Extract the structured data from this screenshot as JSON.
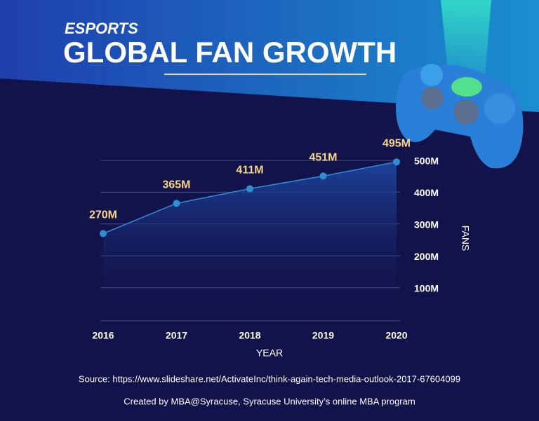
{
  "chart_data": {
    "type": "line",
    "subtitle": "ESPORTS",
    "title": "GLOBAL FAN GROWTH",
    "categories": [
      "2016",
      "2017",
      "2018",
      "2019",
      "2020"
    ],
    "values": [
      270,
      365,
      411,
      451,
      495
    ],
    "value_labels": [
      "270M",
      "365M",
      "411M",
      "451M",
      "495M"
    ],
    "color": "#2f8fd6",
    "ylim": [
      0,
      500
    ],
    "yticks": [
      {
        "value": 100,
        "label": "100M"
      },
      {
        "value": 200,
        "label": "200M"
      },
      {
        "value": 300,
        "label": "300M"
      },
      {
        "value": 400,
        "label": "400M"
      },
      {
        "value": 500,
        "label": "500M"
      }
    ],
    "grid": true,
    "xlabel": "YEAR",
    "ylabel": "FANS",
    "source": "Source: https://www.slideshare.net/ActivateInc/think-again-tech-media-outlook-2017-67604099",
    "credit": "Created by MBA@Syracuse, Syracuse University’s online MBA program"
  }
}
